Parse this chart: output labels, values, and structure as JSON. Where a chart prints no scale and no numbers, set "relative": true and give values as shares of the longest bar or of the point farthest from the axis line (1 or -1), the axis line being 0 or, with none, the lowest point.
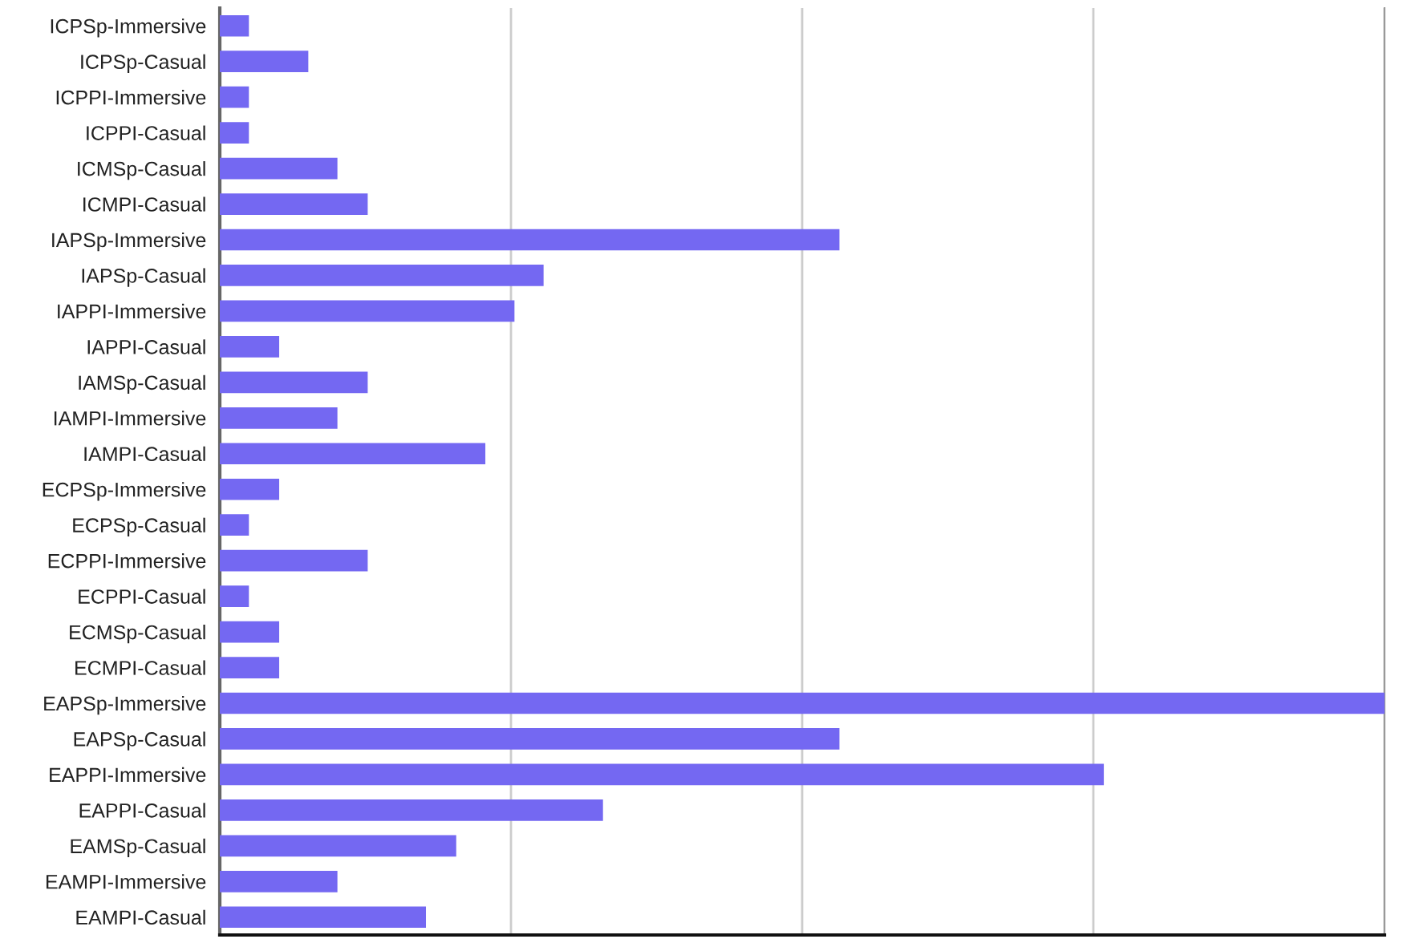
{
  "chart_data": {
    "type": "bar",
    "orientation": "horizontal",
    "relative": true,
    "categories": [
      "ICPSp-Immersive",
      "ICPSp-Casual",
      "ICPPI-Immersive",
      "ICPPI-Casual",
      "ICMSp-Casual",
      "ICMPI-Casual",
      "IAPSp-Immersive",
      "IAPSp-Casual",
      "IAPPI-Immersive",
      "IAPPI-Casual",
      "IAMSp-Casual",
      "IAMPI-Immersive",
      "IAMPI-Casual",
      "ECPSp-Immersive",
      "ECPSp-Casual",
      "ECPPI-Immersive",
      "ECPPI-Casual",
      "ECMSp-Casual",
      "ECMPI-Casual",
      "EAPSp-Immersive",
      "EAPSp-Casual",
      "EAPPI-Immersive",
      "EAPPI-Casual",
      "EAMSp-Casual",
      "EAMPI-Immersive",
      "EAMPI-Casual"
    ],
    "values": [
      0.025,
      0.076,
      0.025,
      0.025,
      0.101,
      0.127,
      0.532,
      0.278,
      0.253,
      0.051,
      0.127,
      0.101,
      0.228,
      0.051,
      0.025,
      0.127,
      0.025,
      0.051,
      0.051,
      1,
      0.532,
      0.759,
      0.329,
      0.203,
      0.101,
      0.177
    ],
    "color": "#7468f2",
    "grid": "x"
  }
}
